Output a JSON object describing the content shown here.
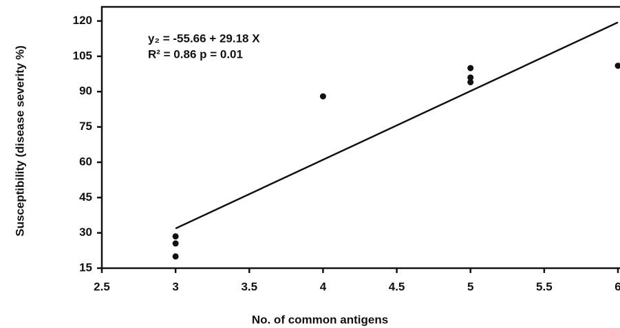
{
  "chart_data": {
    "type": "scatter",
    "xlabel": "No. of common antigens",
    "ylabel": "Susceptibility (disease severity %)",
    "annotations": [
      "y₂ = -55.66 + 29.18 X",
      "R² = 0.86 p = 0.01"
    ],
    "xlim": [
      2.5,
      6
    ],
    "ylim": [
      15,
      126
    ],
    "xticks": [
      2.5,
      3,
      3.5,
      4,
      4.5,
      5,
      5.5,
      6
    ],
    "yticks": [
      15,
      30,
      45,
      60,
      75,
      90,
      105,
      120
    ],
    "series": [
      {
        "type": "scatter",
        "color": "#111111",
        "x": [
          3,
          3,
          3,
          4,
          5,
          5,
          5,
          6
        ],
        "values": [
          28.5,
          25.5,
          20,
          88,
          100,
          96,
          94,
          101
        ]
      },
      {
        "type": "line",
        "color": "#111111",
        "x": [
          3,
          6
        ],
        "values": [
          31.88,
          119.42
        ]
      }
    ]
  }
}
